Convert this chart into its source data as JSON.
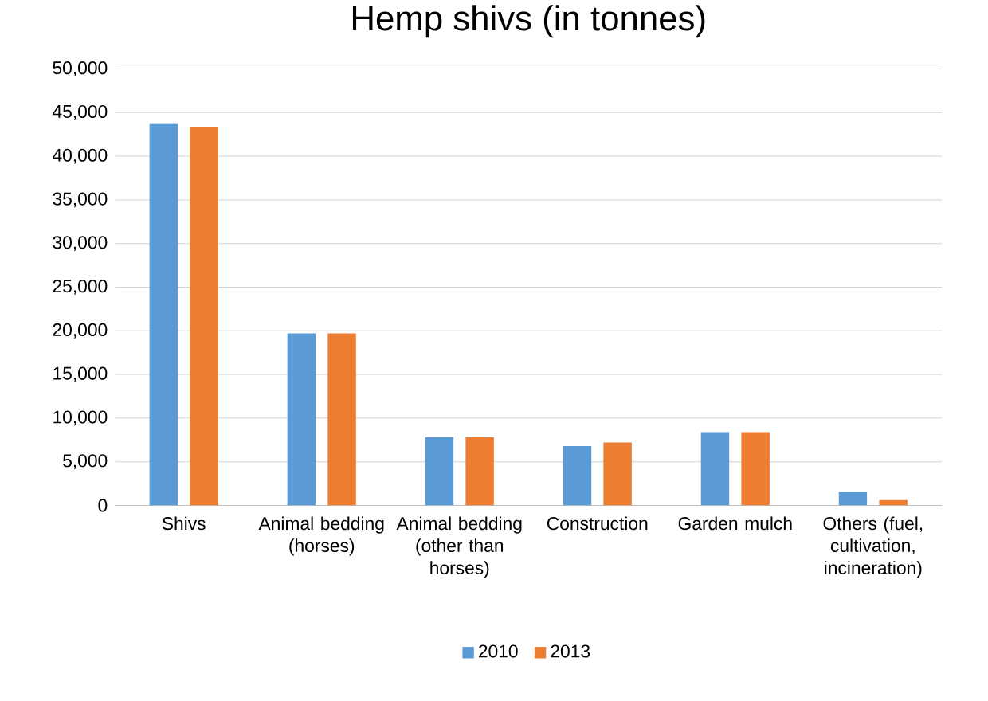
{
  "chart_data": {
    "type": "bar",
    "title": "Hemp shivs (in tonnes)",
    "categories": [
      "Shivs",
      "Animal bedding (horses)",
      "Animal bedding (other than horses)",
      "Construction",
      "Garden mulch",
      "Others (fuel, cultivation, incineration)"
    ],
    "series": [
      {
        "name": "2010",
        "color": "#5b9bd5",
        "values": [
          43700,
          19700,
          7800,
          6800,
          8400,
          1500
        ]
      },
      {
        "name": "2013",
        "color": "#ed7d31",
        "values": [
          43300,
          19700,
          7800,
          7200,
          8400,
          600
        ]
      }
    ],
    "ylim": [
      0,
      50000
    ],
    "yticks": [
      {
        "value": 0,
        "label": "0"
      },
      {
        "value": 5000,
        "label": "5,000"
      },
      {
        "value": 10000,
        "label": "10,000"
      },
      {
        "value": 15000,
        "label": "15,000"
      },
      {
        "value": 20000,
        "label": "20,000"
      },
      {
        "value": 25000,
        "label": "25,000"
      },
      {
        "value": 30000,
        "label": "30,000"
      },
      {
        "value": 35000,
        "label": "35,000"
      },
      {
        "value": 40000,
        "label": "40,000"
      },
      {
        "value": 45000,
        "label": "45,000"
      },
      {
        "value": 50000,
        "label": "50,000"
      }
    ],
    "grid": "y",
    "legend": "bottom"
  }
}
